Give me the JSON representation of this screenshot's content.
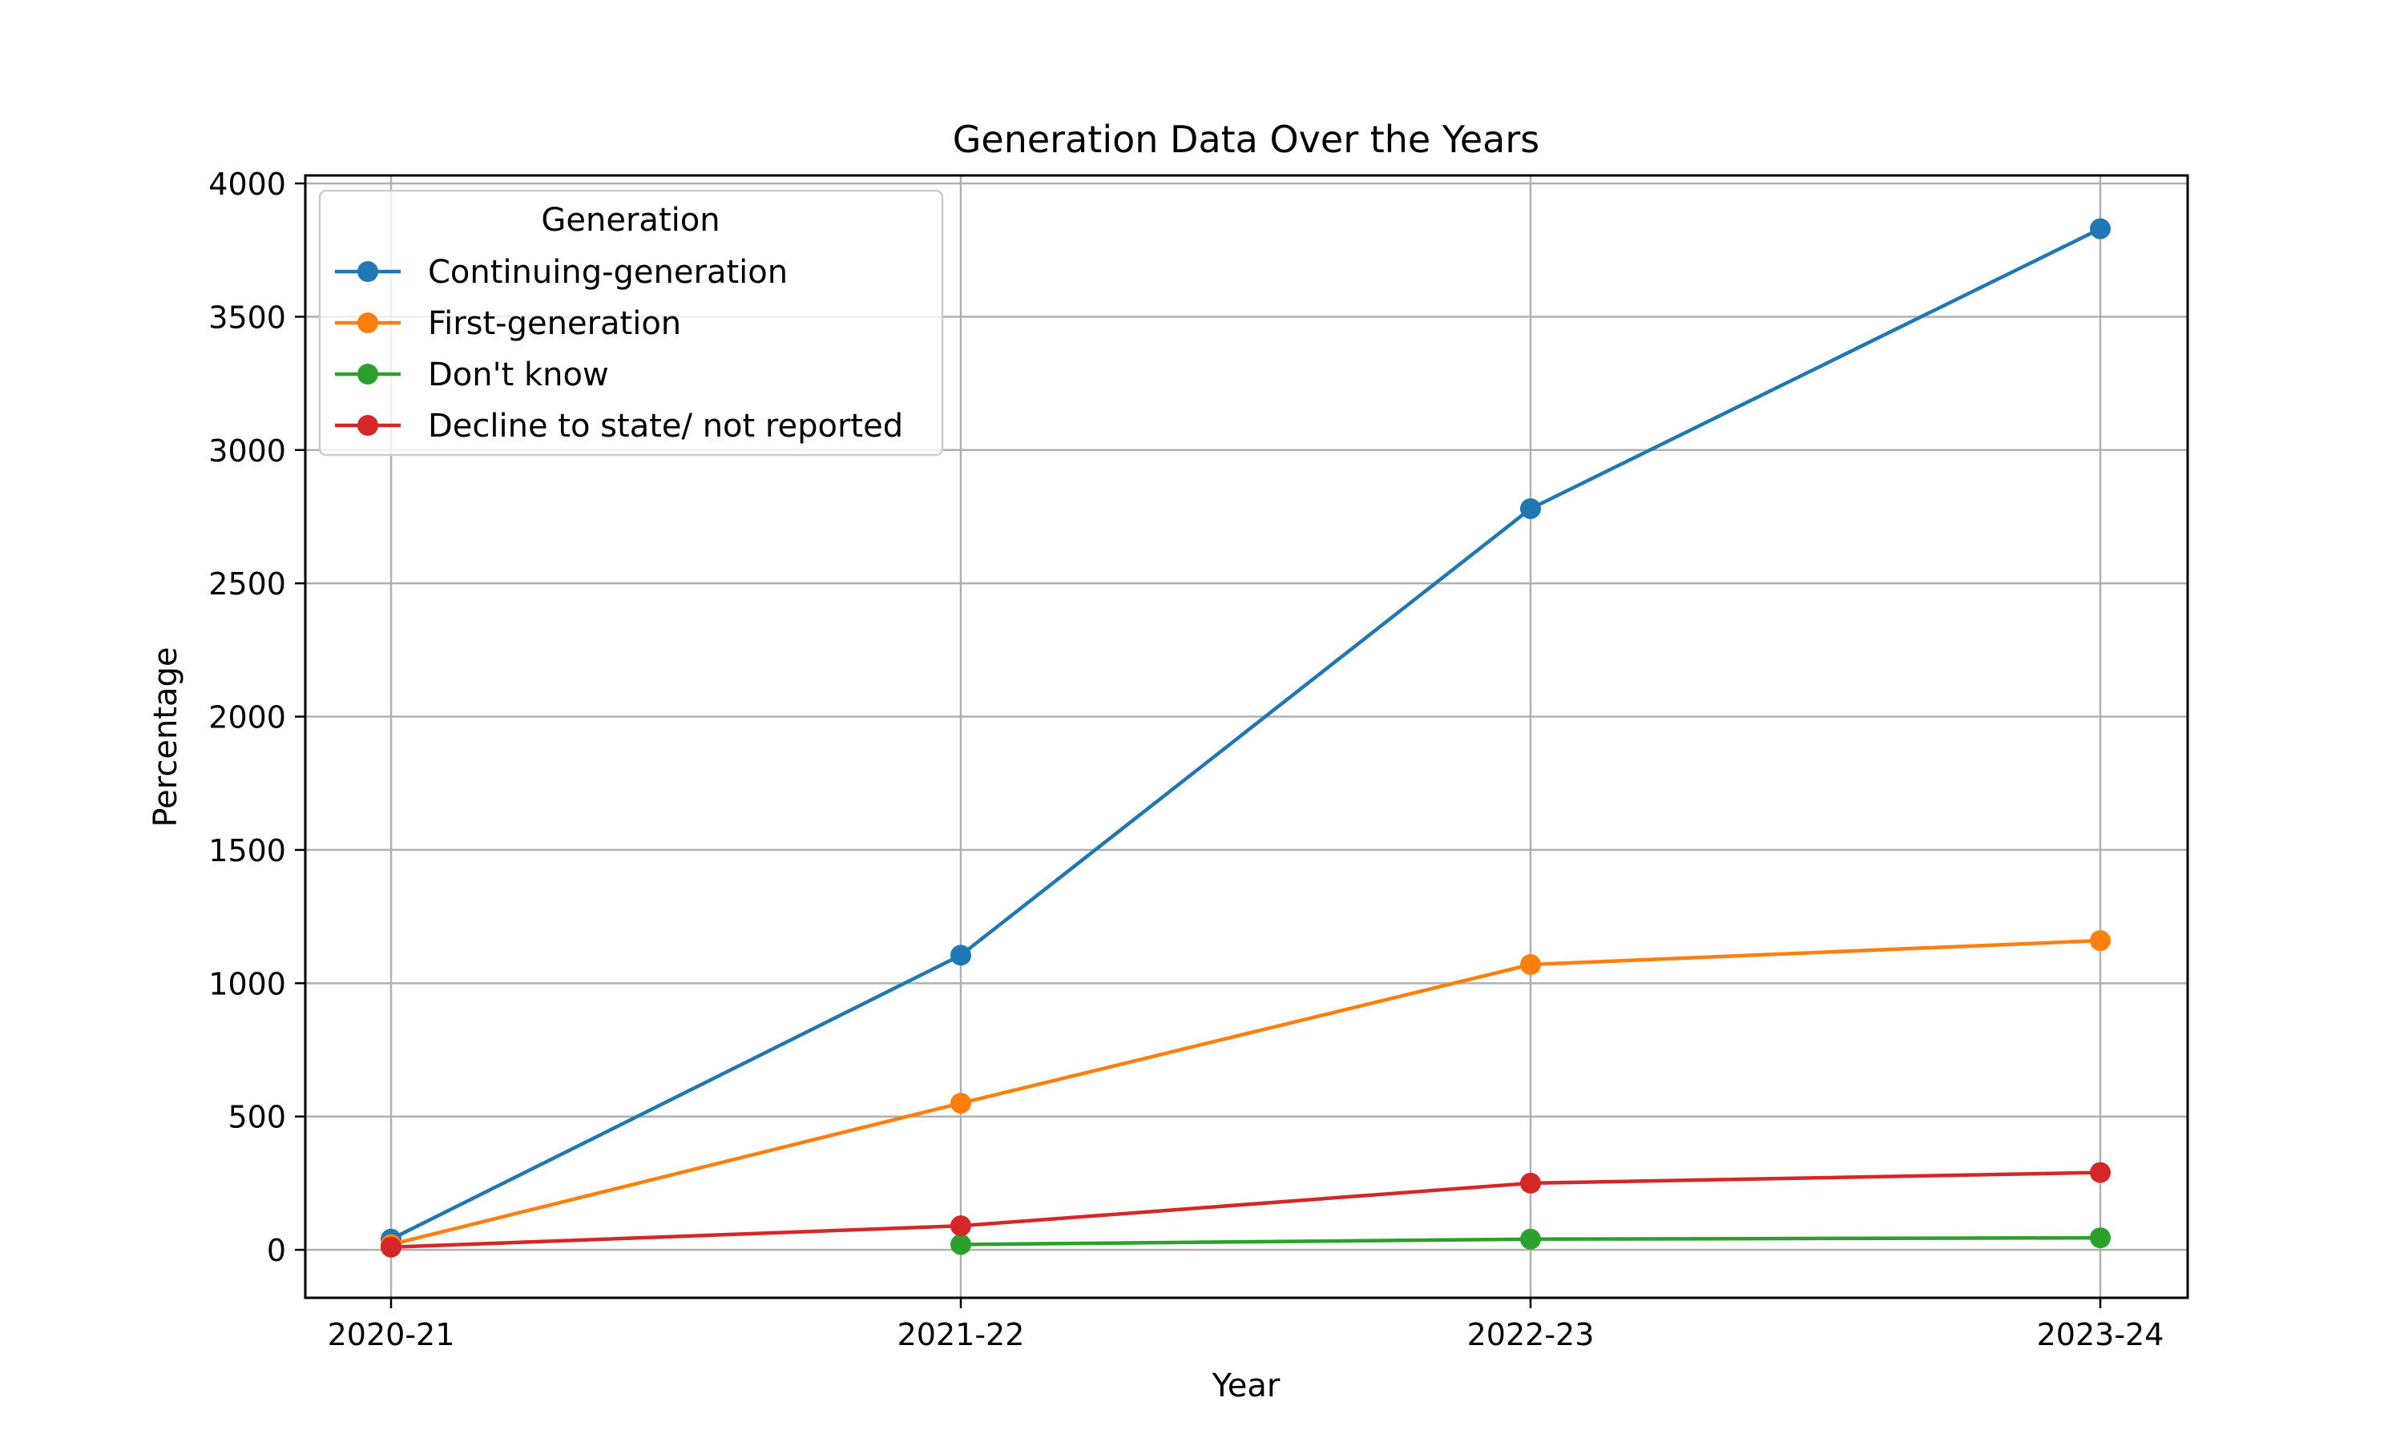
{
  "chart_data": {
    "type": "line",
    "title": "Generation Data Over the Years",
    "xlabel": "Year",
    "ylabel": "Percentage",
    "categories": [
      "2020-21",
      "2021-22",
      "2022-23",
      "2023-24"
    ],
    "ylim": [
      -180,
      4030
    ],
    "yticks": [
      0,
      500,
      1000,
      1500,
      2000,
      2500,
      3000,
      3500,
      4000
    ],
    "grid": true,
    "legend": {
      "title": "Generation",
      "placement": "upper-left"
    },
    "series": [
      {
        "name": "Continuing-generation",
        "color": "#1f77b4",
        "values": [
          40,
          1105,
          2780,
          3830
        ]
      },
      {
        "name": "First-generation",
        "color": "#ff7f0e",
        "values": [
          20,
          550,
          1070,
          1160
        ]
      },
      {
        "name": "Don't know",
        "color": "#2ca02c",
        "values": [
          null,
          20,
          40,
          45
        ]
      },
      {
        "name": "Decline to state/ not reported",
        "color": "#d62728",
        "values": [
          10,
          90,
          250,
          290
        ]
      }
    ]
  }
}
